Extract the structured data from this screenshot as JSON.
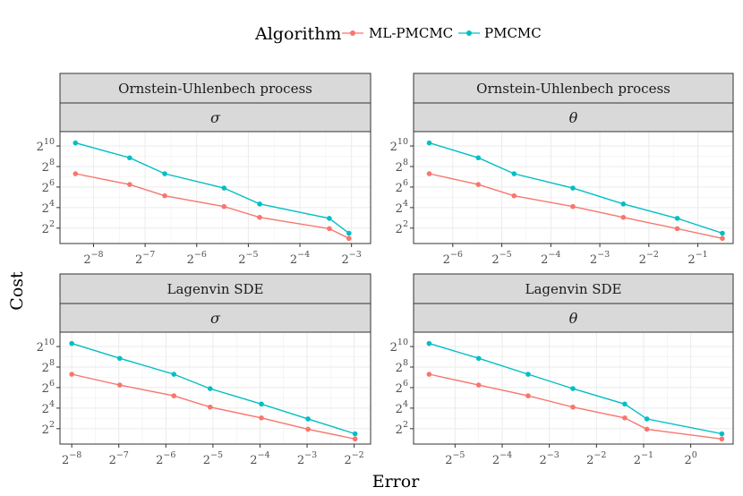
{
  "legend": {
    "title": "Algorithm",
    "items": [
      {
        "label": "ML-PMCMC",
        "color": "#F8766D"
      },
      {
        "label": "PMCMC",
        "color": "#00BFC4"
      }
    ]
  },
  "axes": {
    "xlabel": "Error",
    "ylabel": "Cost"
  },
  "chart_data": [
    {
      "type": "line",
      "title": "Ornstein-Uhlenbech process",
      "parameter": "σ",
      "x_scale": "log2",
      "y_scale": "log2",
      "x_ticks": [
        -8,
        -7,
        -6,
        -5,
        -4,
        -3
      ],
      "y_ticks": [
        2,
        4,
        6,
        8,
        10
      ],
      "xlim": [
        -8.65,
        -2.63
      ],
      "ylim": [
        0.5,
        11.4
      ],
      "series": [
        {
          "name": "ML-PMCMC",
          "x": [
            -8.35,
            -7.3,
            -6.62,
            -5.47,
            -4.78,
            -3.43,
            -3.05
          ],
          "y": [
            7.3,
            6.25,
            5.15,
            4.1,
            3.05,
            1.95,
            1.0
          ]
        },
        {
          "name": "PMCMC",
          "x": [
            -8.35,
            -7.3,
            -6.62,
            -5.47,
            -4.78,
            -3.43,
            -3.05
          ],
          "y": [
            10.3,
            8.85,
            7.3,
            5.9,
            4.35,
            2.95,
            1.5
          ]
        }
      ]
    },
    {
      "type": "line",
      "title": "Ornstein-Uhlenbech process",
      "parameter": "θ",
      "x_scale": "log2",
      "y_scale": "log2",
      "x_ticks": [
        -6,
        -5,
        -4,
        -3,
        -2,
        -1
      ],
      "y_ticks": [
        2,
        4,
        6,
        8,
        10
      ],
      "xlim": [
        -6.8,
        -0.28
      ],
      "ylim": [
        0.5,
        11.4
      ],
      "series": [
        {
          "name": "ML-PMCMC",
          "x": [
            -6.48,
            -5.48,
            -4.75,
            -3.55,
            -2.52,
            -1.42,
            -0.5
          ],
          "y": [
            7.3,
            6.25,
            5.15,
            4.1,
            3.05,
            1.95,
            1.0
          ]
        },
        {
          "name": "PMCMC",
          "x": [
            -6.48,
            -5.48,
            -4.75,
            -3.55,
            -2.52,
            -1.42,
            -0.5
          ],
          "y": [
            10.3,
            8.85,
            7.3,
            5.9,
            4.35,
            2.95,
            1.5
          ]
        }
      ]
    },
    {
      "type": "line",
      "title": "Lagenvin SDE",
      "parameter": "σ",
      "x_scale": "log2",
      "y_scale": "log2",
      "x_ticks": [
        -8,
        -7,
        -6,
        -5,
        -4,
        -3,
        -2
      ],
      "y_ticks": [
        2,
        4,
        6,
        8,
        10
      ],
      "xlim": [
        -8.25,
        -1.65
      ],
      "ylim": [
        0.5,
        11.4
      ],
      "series": [
        {
          "name": "ML-PMCMC",
          "x": [
            -8.0,
            -6.98,
            -5.83,
            -5.06,
            -3.97,
            -2.98,
            -1.98
          ],
          "y": [
            7.3,
            6.25,
            5.2,
            4.1,
            3.05,
            1.95,
            1.0
          ]
        },
        {
          "name": "PMCMC",
          "x": [
            -8.0,
            -6.98,
            -5.83,
            -5.06,
            -3.97,
            -2.98,
            -1.98
          ],
          "y": [
            10.3,
            8.85,
            7.3,
            5.9,
            4.4,
            2.95,
            1.5
          ]
        }
      ]
    },
    {
      "type": "line",
      "title": "Lagenvin SDE",
      "parameter": "θ",
      "x_scale": "log2",
      "y_scale": "log2",
      "x_ticks": [
        -5,
        -4,
        -3,
        -2,
        -1,
        0
      ],
      "y_ticks": [
        2,
        4,
        6,
        8,
        10
      ],
      "xlim": [
        -5.88,
        0.9
      ],
      "ylim": [
        0.5,
        11.4
      ],
      "series": [
        {
          "name": "ML-PMCMC",
          "x": [
            -5.55,
            -4.5,
            -3.45,
            -2.5,
            -1.4,
            -0.93,
            0.66
          ],
          "y": [
            7.3,
            6.25,
            5.2,
            4.1,
            3.05,
            1.95,
            1.0
          ]
        },
        {
          "name": "PMCMC",
          "x": [
            -5.55,
            -4.5,
            -3.45,
            -2.5,
            -1.4,
            -0.93,
            0.66
          ],
          "y": [
            10.3,
            8.85,
            7.3,
            5.9,
            4.4,
            2.95,
            1.5
          ]
        }
      ]
    }
  ]
}
